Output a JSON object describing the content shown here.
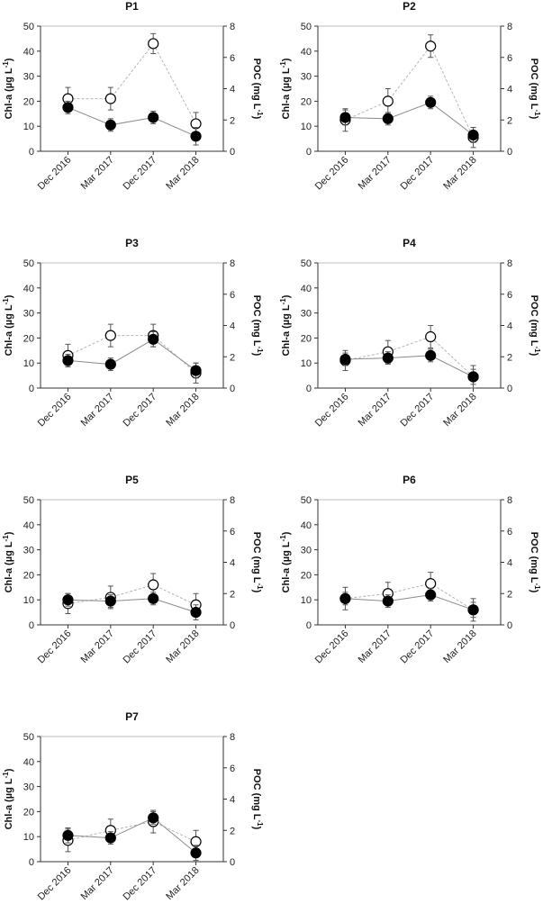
{
  "chart_data": [
    {
      "type": "line",
      "title": "P1",
      "categories": [
        "Dec 2016",
        "Mar 2017",
        "Dec 2017",
        "Mar 2018"
      ],
      "ylabel_left": "Chl-a (µg L-1)",
      "ylabel_right": "POC (mg L-1)",
      "ylim_left": [
        0,
        50
      ],
      "yticks_left": [
        0,
        10,
        20,
        30,
        40,
        50
      ],
      "ylim_right": [
        0,
        8
      ],
      "yticks_right": [
        0,
        2,
        4,
        6,
        8
      ],
      "series": [
        {
          "marker": "filled",
          "axis": "left",
          "values": [
            17.5,
            10.5,
            13.5,
            6.0
          ],
          "errors": [
            2.5,
            2.5,
            2.5,
            3.5
          ]
        },
        {
          "marker": "open",
          "axis": "left",
          "values": [
            21.0,
            21.0,
            43.0,
            11.0
          ],
          "errors": [
            4.5,
            4.5,
            4.0,
            4.5
          ]
        }
      ]
    },
    {
      "type": "line",
      "title": "P2",
      "categories": [
        "Dec 2016",
        "Mar 2017",
        "Dec 2017",
        "Mar 2018"
      ],
      "ylabel_left": "Chl-a (µg L-1)",
      "ylabel_right": "POC (mg L-1)",
      "ylim_left": [
        0,
        50
      ],
      "yticks_left": [
        0,
        10,
        20,
        30,
        40,
        50
      ],
      "ylim_right": [
        0,
        8
      ],
      "yticks_right": [
        0,
        2,
        4,
        6,
        8
      ],
      "series": [
        {
          "marker": "filled",
          "axis": "left",
          "values": [
            13.5,
            13.0,
            19.5,
            6.5
          ],
          "errors": [
            3.0,
            2.5,
            2.5,
            3.0
          ]
        },
        {
          "marker": "open",
          "axis": "left",
          "values": [
            12.5,
            20.0,
            42.0,
            5.5
          ],
          "errors": [
            4.5,
            5.0,
            4.5,
            4.0
          ]
        }
      ]
    },
    {
      "type": "line",
      "title": "P3",
      "categories": [
        "Dec 2016",
        "Mar 2017",
        "Dec 2017",
        "Mar 2018"
      ],
      "ylabel_left": "Chl-a (µg L-1)",
      "ylabel_right": "POC (mg L-1)",
      "ylim_left": [
        0,
        50
      ],
      "yticks_left": [
        0,
        10,
        20,
        30,
        40,
        50
      ],
      "ylim_right": [
        0,
        8
      ],
      "yticks_right": [
        0,
        2,
        4,
        6,
        8
      ],
      "series": [
        {
          "marker": "filled",
          "axis": "left",
          "values": [
            11.0,
            9.5,
            19.5,
            7.0
          ],
          "errors": [
            2.5,
            2.5,
            3.0,
            3.0
          ]
        },
        {
          "marker": "open",
          "axis": "left",
          "values": [
            13.0,
            21.0,
            21.0,
            6.0
          ],
          "errors": [
            4.5,
            4.5,
            4.5,
            4.0
          ]
        }
      ]
    },
    {
      "type": "line",
      "title": "P4",
      "categories": [
        "Dec 2016",
        "Mar 2017",
        "Dec 2017",
        "Mar 2018"
      ],
      "ylabel_left": "Chl-a (µg L-1)",
      "ylabel_right": "POC (mg L-1)",
      "ylim_left": [
        0,
        50
      ],
      "yticks_left": [
        0,
        10,
        20,
        30,
        40,
        50
      ],
      "ylim_right": [
        0,
        8
      ],
      "yticks_right": [
        0,
        2,
        4,
        6,
        8
      ],
      "series": [
        {
          "marker": "filled",
          "axis": "left",
          "values": [
            11.5,
            12.0,
            13.0,
            4.5
          ],
          "errors": [
            2.5,
            2.5,
            2.5,
            3.0
          ]
        },
        {
          "marker": "open",
          "axis": "left",
          "values": [
            11.0,
            14.5,
            20.5,
            4.5
          ],
          "errors": [
            4.0,
            4.5,
            4.5,
            4.5
          ]
        }
      ]
    },
    {
      "type": "line",
      "title": "P5",
      "categories": [
        "Dec 2016",
        "Mar 2017",
        "Dec 2017",
        "Mar 2018"
      ],
      "ylabel_left": "Chl-a (µg L-1)",
      "ylabel_right": "POC (mg L-1)",
      "ylim_left": [
        0,
        50
      ],
      "yticks_left": [
        0,
        10,
        20,
        30,
        40,
        50
      ],
      "ylim_right": [
        0,
        8
      ],
      "yticks_right": [
        0,
        2,
        4,
        6,
        8
      ],
      "series": [
        {
          "marker": "filled",
          "axis": "left",
          "values": [
            10.0,
            9.5,
            10.5,
            5.0
          ],
          "errors": [
            2.5,
            2.5,
            2.5,
            3.0
          ]
        },
        {
          "marker": "open",
          "axis": "left",
          "values": [
            8.5,
            11.0,
            16.0,
            8.0
          ],
          "errors": [
            4.0,
            4.5,
            4.5,
            4.5
          ]
        }
      ]
    },
    {
      "type": "line",
      "title": "P6",
      "categories": [
        "Dec 2016",
        "Mar 2017",
        "Dec 2017",
        "Mar 2018"
      ],
      "ylabel_left": "Chl-a (µg L-1)",
      "ylabel_right": "POC (mg L-1)",
      "ylim_left": [
        0,
        50
      ],
      "yticks_left": [
        0,
        10,
        20,
        30,
        40,
        50
      ],
      "ylim_right": [
        0,
        8
      ],
      "yticks_right": [
        0,
        2,
        4,
        6,
        8
      ],
      "series": [
        {
          "marker": "filled",
          "axis": "left",
          "values": [
            10.5,
            9.5,
            12.0,
            6.0
          ],
          "errors": [
            2.5,
            2.5,
            2.5,
            3.0
          ]
        },
        {
          "marker": "open",
          "axis": "left",
          "values": [
            10.5,
            12.5,
            16.5,
            6.0
          ],
          "errors": [
            4.5,
            4.5,
            4.5,
            4.5
          ]
        }
      ]
    },
    {
      "type": "line",
      "title": "P7",
      "categories": [
        "Dec 2016",
        "Mar 2017",
        "Dec 2017",
        "Mar 2018"
      ],
      "ylabel_left": "Chl-a (µg L-1)",
      "ylabel_right": "POC (mg L-1)",
      "ylim_left": [
        0,
        50
      ],
      "yticks_left": [
        0,
        10,
        20,
        30,
        40,
        50
      ],
      "ylim_right": [
        0,
        8
      ],
      "yticks_right": [
        0,
        2,
        4,
        6,
        8
      ],
      "series": [
        {
          "marker": "filled",
          "axis": "left",
          "values": [
            10.5,
            9.5,
            17.5,
            3.5
          ],
          "errors": [
            3.0,
            2.5,
            2.5,
            3.0
          ]
        },
        {
          "marker": "open",
          "axis": "left",
          "values": [
            8.5,
            12.5,
            16.0,
            8.0
          ],
          "errors": [
            4.5,
            4.5,
            4.5,
            4.5
          ]
        }
      ]
    }
  ]
}
